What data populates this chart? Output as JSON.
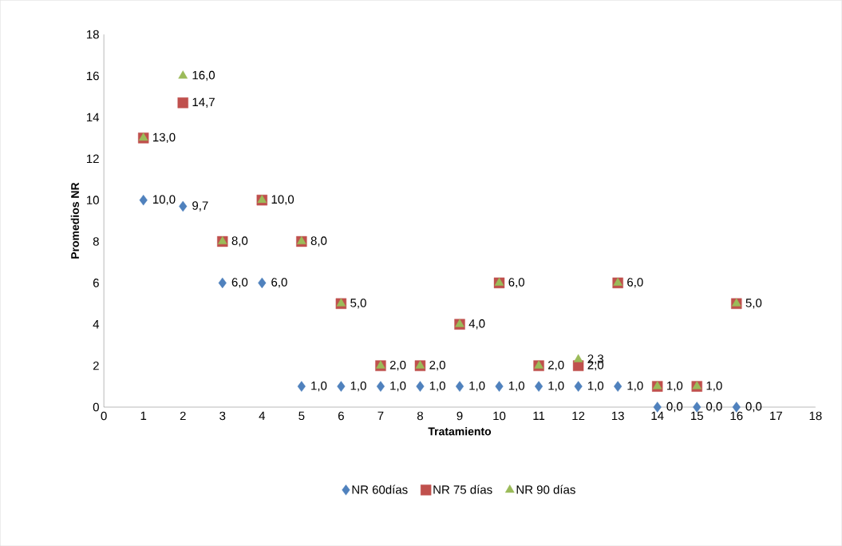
{
  "chart_data": {
    "type": "scatter",
    "xlabel": "Tratamiento",
    "ylabel": "Promedios  NR",
    "x": [
      1,
      2,
      3,
      4,
      5,
      6,
      7,
      8,
      9,
      10,
      11,
      12,
      13,
      14,
      15,
      16
    ],
    "xlim": [
      0,
      18
    ],
    "xticks": [
      0,
      1,
      2,
      3,
      4,
      5,
      6,
      7,
      8,
      9,
      10,
      11,
      12,
      13,
      14,
      15,
      16,
      17,
      18
    ],
    "ylim": [
      0,
      18
    ],
    "yticks": [
      0,
      2,
      4,
      6,
      8,
      10,
      12,
      14,
      16,
      18
    ],
    "grid": false,
    "legend": "bottom",
    "series": [
      {
        "name": "NR 60días",
        "color": "#4f81bd",
        "marker": "diamond",
        "values": [
          10,
          9.7,
          6,
          6,
          1,
          1,
          1,
          1,
          1,
          1,
          1,
          1,
          1,
          0,
          0,
          0
        ],
        "value_labels": [
          "10,0",
          "9,7",
          "6,0",
          "6,0",
          "1,0",
          "1,0",
          "1,0",
          "1,0",
          "1,0",
          "1,0",
          "1,0",
          "1,0",
          "1,0",
          "0,0",
          "0,0",
          "0,0"
        ]
      },
      {
        "name": "NR 75 días",
        "color": "#c0504d",
        "marker": "square",
        "values": [
          13,
          14.7,
          8,
          10,
          8,
          5,
          2,
          2,
          4,
          6,
          2,
          2,
          6,
          1,
          1,
          5
        ],
        "value_labels": [
          null,
          "14,7",
          null,
          null,
          null,
          null,
          null,
          null,
          null,
          null,
          null,
          "2,0",
          null,
          null,
          null,
          null
        ]
      },
      {
        "name": "NR 90 días",
        "color": "#9bbb59",
        "marker": "triangle",
        "values": [
          13,
          16,
          8,
          10,
          8,
          5,
          2,
          2,
          4,
          6,
          2,
          2.3,
          6,
          1,
          1,
          5
        ],
        "value_labels": [
          "13,0",
          "16,0",
          "8,0",
          "10,0",
          "8,0",
          "5,0",
          "2,0",
          "2,0",
          "4,0",
          "6,0",
          "2,0",
          "2,3",
          "6,0",
          "1,0",
          "1,0",
          "5,0"
        ]
      }
    ]
  }
}
